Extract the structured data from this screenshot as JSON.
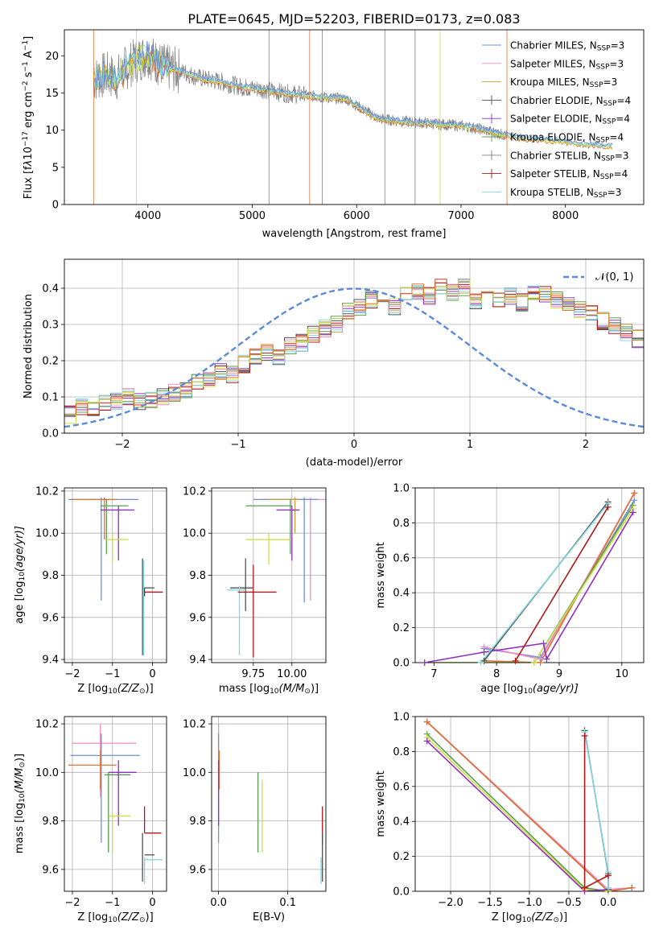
{
  "title": "PLATE=0645, MJD=52203, FIBERID=0173, z=0.083",
  "colors": {
    "Chabrier MILES": "#6f8fdc",
    "Salpeter MILES": "#f08cc0",
    "Kroupa MILES": "#c8a040",
    "Chabrier ELODIE": "#505050",
    "Salpeter ELODIE": "#9030c0",
    "Kroupa ELODIE": "#58a050",
    "Chabrier STELIB": "#808080",
    "Salpeter STELIB": "#b01818",
    "Kroupa STELIB": "#80d8e0",
    "extra_lime": "#d0e040",
    "extra_orange": "#e07030",
    "normal": "#5b8bd8"
  },
  "chart_data": [
    {
      "id": "spectrum",
      "type": "line",
      "xlabel": "wavelength [Angstrom, rest frame]",
      "ylabel_parts": [
        "Flux [f",
        "λ",
        "10",
        "−17",
        " erg cm",
        "−2",
        " s",
        "−1",
        " A",
        "−1",
        "]"
      ],
      "xlim": [
        3200,
        8750
      ],
      "ylim": [
        0,
        23.5
      ],
      "xticks": [
        4000,
        5000,
        6000,
        7000,
        8000
      ],
      "yticks": [
        0,
        5,
        10,
        15,
        20
      ],
      "legend_loc": "upper right",
      "legend": [
        {
          "imf": "Chabrier",
          "lib": "MILES",
          "n": "3",
          "color": "#6f8fdc",
          "marker": "line"
        },
        {
          "imf": "Salpeter",
          "lib": "MILES",
          "n": "3",
          "color": "#f08cc0",
          "marker": "line"
        },
        {
          "imf": "Kroupa",
          "lib": "MILES",
          "n": "3",
          "color": "#c8a040",
          "marker": "line"
        },
        {
          "imf": "Chabrier",
          "lib": "ELODIE",
          "n": "4",
          "color": "#505050",
          "marker": "cross"
        },
        {
          "imf": "Salpeter",
          "lib": "ELODIE",
          "n": "4",
          "color": "#9030c0",
          "marker": "cross"
        },
        {
          "imf": "Kroupa",
          "lib": "ELODIE",
          "n": "4",
          "color": "#58a050",
          "marker": "cross"
        },
        {
          "imf": "Chabrier",
          "lib": "STELIB",
          "n": "3",
          "color": "#808080",
          "marker": "cross"
        },
        {
          "imf": "Salpeter",
          "lib": "STELIB",
          "n": "4",
          "color": "#b01818",
          "marker": "cross"
        },
        {
          "imf": "Kroupa",
          "lib": "STELIB",
          "n": "3",
          "color": "#80d8e0",
          "marker": "line"
        }
      ],
      "continuum": {
        "x": [
          3480,
          3600,
          3700,
          3800,
          3900,
          4000,
          4100,
          4200,
          4300,
          4500,
          4700,
          4900,
          5100,
          5300,
          5500,
          5700,
          5900,
          6000,
          6200,
          6400,
          6600,
          6800,
          7000,
          7200,
          7400,
          7600,
          7800,
          8000,
          8200,
          8450
        ],
        "y": [
          16.8,
          17.5,
          17.0,
          18.5,
          19.5,
          20.2,
          19.0,
          18.3,
          18.0,
          17.0,
          16.5,
          15.8,
          15.5,
          15.0,
          14.7,
          14.4,
          14.2,
          13.3,
          11.6,
          11.2,
          11.0,
          10.8,
          10.6,
          10.1,
          9.4,
          8.9,
          8.7,
          8.4,
          8.1,
          7.8
        ]
      }
    },
    {
      "id": "residuals",
      "type": "histogram",
      "xlabel": "(data-model)/error",
      "ylabel": "Normed distribution",
      "xlim": [
        -2.5,
        2.5
      ],
      "ylim": [
        0,
        0.48
      ],
      "xticks": [
        -2,
        -1,
        0,
        1,
        2
      ],
      "yticks": [
        0.0,
        0.1,
        0.2,
        0.3,
        0.4
      ],
      "grid": true,
      "legend_loc": "upper right",
      "legend": "N(0,1)",
      "bin_width": 0.1,
      "bins_start": -2.5,
      "base_values": [
        0.05,
        0.07,
        0.07,
        0.08,
        0.09,
        0.1,
        0.09,
        0.09,
        0.1,
        0.11,
        0.12,
        0.14,
        0.15,
        0.17,
        0.16,
        0.19,
        0.21,
        0.22,
        0.21,
        0.24,
        0.25,
        0.27,
        0.29,
        0.3,
        0.34,
        0.35,
        0.37,
        0.37,
        0.35,
        0.38,
        0.39,
        0.38,
        0.4,
        0.39,
        0.4,
        0.36,
        0.38,
        0.37,
        0.38,
        0.36,
        0.39,
        0.38,
        0.37,
        0.36,
        0.34,
        0.33,
        0.31,
        0.3,
        0.28,
        0.26,
        0.28,
        0.27,
        0.24,
        0.22,
        0.2,
        0.18,
        0.17,
        0.15,
        0.14,
        0.13,
        0.12,
        0.11,
        0.1,
        0.09,
        0.08,
        0.08,
        0.07,
        0.06,
        0.05,
        0.05,
        0.04,
        0.04,
        0.04,
        0.03,
        0.03,
        0.03,
        0.04,
        0.03,
        0.03,
        0.02,
        0.03,
        0.02,
        0.02,
        0.03,
        0.02,
        0.02,
        0.02,
        0.01,
        0.01,
        0.01,
        0.02,
        0.01,
        0.01,
        0.01,
        0.01,
        0.01,
        0.01,
        0.01,
        0.01,
        0.01
      ]
    },
    {
      "id": "age-Z",
      "type": "errorbar",
      "xlabel_parts": [
        "Z [log",
        "10",
        "(Z/Z",
        "⊙",
        ")]"
      ],
      "ylabel_parts": [
        "age  [log",
        "10",
        "(age/yr)]"
      ],
      "xlim": [
        -2.2,
        0.35
      ],
      "ylim": [
        9.385,
        10.215
      ],
      "xticks": [
        -2,
        -1,
        0
      ],
      "yticks": [
        9.4,
        9.6,
        9.8,
        10.0,
        10.2
      ],
      "grid": true,
      "points": [
        {
          "x": -1.28,
          "y": 10.16,
          "xl": -2.1,
          "xh": -0.35,
          "yl": 9.68,
          "yh": 10.17,
          "c": "#6f8fdc"
        },
        {
          "x": -1.2,
          "y": 10.16,
          "xl": -2.0,
          "xh": -0.9,
          "yl": 9.97,
          "yh": 10.17,
          "c": "#e07030"
        },
        {
          "x": -1.15,
          "y": 10.13,
          "xl": -1.3,
          "xh": -0.6,
          "yl": 9.9,
          "yh": 10.16,
          "c": "#58a050"
        },
        {
          "x": -0.85,
          "y": 10.11,
          "xl": -1.3,
          "xh": -0.45,
          "yl": 9.87,
          "yh": 10.13,
          "c": "#9030c0"
        },
        {
          "x": -1.0,
          "y": 9.97,
          "xl": -1.15,
          "xh": -0.6,
          "yl": 9.86,
          "yh": 10.0,
          "c": "#d0e040"
        },
        {
          "x": -0.25,
          "y": 9.74,
          "xl": -0.25,
          "xh": 0.05,
          "yl": 9.42,
          "yh": 9.88,
          "c": "#505050"
        },
        {
          "x": -0.22,
          "y": 9.72,
          "xl": -0.22,
          "xh": 0.28,
          "yl": 9.42,
          "yh": 9.87,
          "c": "#80d8e0"
        },
        {
          "x": -0.2,
          "y": 9.72,
          "xl": -0.2,
          "xh": 0.25,
          "yl": 9.7,
          "yh": 9.74,
          "c": "#b01818"
        }
      ]
    },
    {
      "id": "age-mass",
      "type": "errorbar",
      "xlabel_parts": [
        "mass [log",
        "10",
        "(M/M",
        "⊙",
        ")]"
      ],
      "xlim": [
        9.48,
        10.22
      ],
      "ylim": [
        9.385,
        10.215
      ],
      "xticks": [
        9.75,
        10.0
      ],
      "xtick_labels": [
        "9.75",
        "10.00"
      ],
      "yticks": [
        9.4,
        9.6,
        9.8,
        10.0,
        10.2
      ],
      "grid": true,
      "points": [
        {
          "x": 10.12,
          "y": 10.16,
          "xl": 9.8,
          "xh": 10.22,
          "yl": 9.68,
          "yh": 10.17,
          "c": "#f08cc0"
        },
        {
          "x": 10.08,
          "y": 10.16,
          "xl": 9.75,
          "xh": 10.17,
          "yl": 9.67,
          "yh": 10.17,
          "c": "#6f8fdc"
        },
        {
          "x": 10.02,
          "y": 10.16,
          "xl": 9.85,
          "xh": 10.05,
          "yl": 10.0,
          "yh": 10.17,
          "c": "#c8a040"
        },
        {
          "x": 9.99,
          "y": 10.13,
          "xl": 9.7,
          "xh": 10.0,
          "yl": 9.9,
          "yh": 10.16,
          "c": "#58a050"
        },
        {
          "x": 10.0,
          "y": 10.11,
          "xl": 9.9,
          "xh": 10.05,
          "yl": 9.87,
          "yh": 10.13,
          "c": "#9030c0"
        },
        {
          "x": 9.85,
          "y": 9.97,
          "xl": 9.7,
          "xh": 9.99,
          "yl": 9.85,
          "yh": 10.0,
          "c": "#d0e040"
        },
        {
          "x": 9.7,
          "y": 9.74,
          "xl": 9.6,
          "xh": 9.75,
          "yl": 9.63,
          "yh": 9.88,
          "c": "#505050"
        },
        {
          "x": 9.66,
          "y": 9.73,
          "xl": 9.58,
          "xh": 9.7,
          "yl": 9.42,
          "yh": 9.75,
          "c": "#80d8e0"
        },
        {
          "x": 9.75,
          "y": 9.72,
          "xl": 9.65,
          "xh": 9.9,
          "yl": 9.41,
          "yh": 9.85,
          "c": "#b01818"
        }
      ]
    },
    {
      "id": "mass-weight-age",
      "type": "line",
      "xlabel_parts": [
        "age  [log",
        "10",
        "(age/yr)]"
      ],
      "ylabel": "mass weight",
      "xlim": [
        6.7,
        10.35
      ],
      "ylim": [
        0,
        1.0
      ],
      "xticks": [
        7,
        8,
        9,
        10
      ],
      "yticks": [
        0.0,
        0.2,
        0.4,
        0.6,
        0.8,
        1.0
      ],
      "grid": true,
      "series": [
        {
          "c": "#6f8fdc",
          "x": [
            7.8,
            8.7,
            10.2
          ],
          "y": [
            0.08,
            0.03,
            0.93
          ]
        },
        {
          "c": "#f08cc0",
          "x": [
            7.8,
            8.7,
            10.2
          ],
          "y": [
            0.09,
            0.02,
            0.97
          ]
        },
        {
          "c": "#e07030",
          "x": [
            7.8,
            8.7,
            10.2
          ],
          "y": [
            0.01,
            0.0,
            0.97
          ]
        },
        {
          "c": "#58a050",
          "x": [
            6.85,
            8.6,
            10.18
          ],
          "y": [
            0.0,
            0.0,
            0.9
          ]
        },
        {
          "c": "#d0e040",
          "x": [
            6.85,
            8.6,
            10.18
          ],
          "y": [
            0.0,
            0.0,
            0.88
          ]
        },
        {
          "c": "#9030c0",
          "x": [
            6.85,
            7.8,
            8.75,
            8.8,
            10.18
          ],
          "y": [
            0.0,
            0.06,
            0.11,
            0.02,
            0.86
          ]
        },
        {
          "c": "#505050",
          "x": [
            7.8,
            9.78
          ],
          "y": [
            0.01,
            0.92
          ]
        },
        {
          "c": "#80d8e0",
          "x": [
            7.75,
            9.78
          ],
          "y": [
            0.0,
            0.91
          ]
        },
        {
          "c": "#b01818",
          "x": [
            8.3,
            9.78
          ],
          "y": [
            0.01,
            0.89
          ]
        }
      ]
    },
    {
      "id": "mass-Z",
      "type": "errorbar",
      "xlabel_parts": [
        "Z [log",
        "10",
        "(Z/Z",
        "⊙",
        ")]"
      ],
      "ylabel_parts": [
        "mass [log",
        "10",
        "(M/M",
        "⊙",
        ")]"
      ],
      "xlim": [
        -2.2,
        0.35
      ],
      "ylim": [
        9.51,
        10.23
      ],
      "xticks": [
        -2,
        -1,
        0
      ],
      "yticks": [
        9.6,
        9.8,
        10.0,
        10.2
      ],
      "grid": true,
      "points": [
        {
          "x": -1.3,
          "y": 10.12,
          "xl": -2.0,
          "xh": -0.4,
          "yl": 9.9,
          "yh": 10.2,
          "c": "#f08cc0"
        },
        {
          "x": -1.28,
          "y": 10.07,
          "xl": -2.05,
          "xh": -0.32,
          "yl": 9.71,
          "yh": 10.16,
          "c": "#6f8fdc"
        },
        {
          "x": -1.3,
          "y": 10.03,
          "xl": -2.1,
          "xh": -0.9,
          "yl": 9.93,
          "yh": 10.09,
          "c": "#e07030"
        },
        {
          "x": -1.1,
          "y": 9.99,
          "xl": -1.2,
          "xh": -0.55,
          "yl": 9.67,
          "yh": 10.0,
          "c": "#58a050"
        },
        {
          "x": -0.85,
          "y": 10.0,
          "xl": -1.1,
          "xh": -0.4,
          "yl": 9.78,
          "yh": 10.05,
          "c": "#9030c0"
        },
        {
          "x": -1.0,
          "y": 9.82,
          "xl": -1.1,
          "xh": -0.55,
          "yl": 9.67,
          "yh": 9.83,
          "c": "#d0e040"
        },
        {
          "x": -0.2,
          "y": 9.75,
          "xl": -0.2,
          "xh": 0.22,
          "yl": 9.75,
          "yh": 9.86,
          "c": "#b01818"
        },
        {
          "x": -0.25,
          "y": 9.66,
          "xl": -0.2,
          "xh": 0.05,
          "yl": 9.55,
          "yh": 9.75,
          "c": "#505050"
        },
        {
          "x": -0.2,
          "y": 9.64,
          "xl": -0.2,
          "xh": 0.25,
          "yl": 9.54,
          "yh": 9.65,
          "c": "#80d8e0"
        }
      ]
    },
    {
      "id": "mass-EBV",
      "type": "errorbar",
      "xlabel": "E(B-V)",
      "xlim": [
        -0.01,
        0.155
      ],
      "ylim": [
        9.51,
        10.23
      ],
      "xticks": [
        0.0,
        0.1
      ],
      "xtick_labels": [
        "0.0",
        "0.1"
      ],
      "yticks": [
        9.6,
        9.8,
        10.0,
        10.2
      ],
      "grid": true,
      "points": [
        {
          "x": 0.0,
          "y": 10.12,
          "xl": 0.0,
          "xh": 0.0,
          "yl": 9.93,
          "yh": 10.2,
          "c": "#f08cc0"
        },
        {
          "x": 0.0,
          "y": 10.07,
          "xl": 0.0,
          "xh": 0.0,
          "yl": 9.71,
          "yh": 10.16,
          "c": "#6f8fdc"
        },
        {
          "x": 0.001,
          "y": 10.03,
          "xl": 0.001,
          "xh": 0.001,
          "yl": 9.93,
          "yh": 10.09,
          "c": "#e07030"
        },
        {
          "x": 0.0,
          "y": 10.0,
          "xl": 0.0,
          "xh": 0.0,
          "yl": 9.78,
          "yh": 10.05,
          "c": "#9030c0"
        },
        {
          "x": 0.057,
          "y": 9.99,
          "xl": 0.057,
          "xh": 0.057,
          "yl": 9.67,
          "yh": 10.0,
          "c": "#58a050"
        },
        {
          "x": 0.063,
          "y": 9.82,
          "xl": 0.063,
          "xh": 0.063,
          "yl": 9.67,
          "yh": 9.97,
          "c": "#d0e040"
        },
        {
          "x": 0.15,
          "y": 9.75,
          "xl": 0.15,
          "xh": 0.15,
          "yl": 9.7,
          "yh": 9.86,
          "c": "#b01818"
        },
        {
          "x": 0.15,
          "y": 9.66,
          "xl": 0.15,
          "xh": 0.15,
          "yl": 9.55,
          "yh": 9.75,
          "c": "#505050"
        },
        {
          "x": 0.148,
          "y": 9.64,
          "xl": 0.148,
          "xh": 0.148,
          "yl": 9.54,
          "yh": 9.65,
          "c": "#80d8e0"
        }
      ]
    },
    {
      "id": "mass-weight-Z",
      "type": "line",
      "xlabel_parts": [
        "Z [log",
        "10",
        "(Z/Z",
        "⊙",
        ")]"
      ],
      "ylabel": "mass weight",
      "xlim": [
        -2.45,
        0.45
      ],
      "ylim": [
        0,
        1.0
      ],
      "xticks": [
        -2.0,
        -1.5,
        -1.0,
        -0.5,
        0.0
      ],
      "xtick_labels": [
        "−2.0",
        "−1.5",
        "−1.0",
        "−0.5",
        "0.0"
      ],
      "yticks": [
        0.0,
        0.2,
        0.4,
        0.6,
        0.8,
        1.0
      ],
      "grid": true,
      "series": [
        {
          "c": "#6f8fdc",
          "x": [
            -2.3,
            0.0,
            0.3
          ],
          "y": [
            0.97,
            0.0,
            0.02
          ]
        },
        {
          "c": "#f08cc0",
          "x": [
            -2.3,
            0.0,
            0.3
          ],
          "y": [
            0.97,
            0.01,
            0.02
          ]
        },
        {
          "c": "#e07030",
          "x": [
            -2.3,
            0.0,
            0.3
          ],
          "y": [
            0.97,
            0.0,
            0.02
          ]
        },
        {
          "c": "#58a050",
          "x": [
            -2.3,
            -0.3,
            0.0
          ],
          "y": [
            0.9,
            0.02,
            0.0
          ]
        },
        {
          "c": "#d0e040",
          "x": [
            -2.3,
            -0.3,
            0.0
          ],
          "y": [
            0.88,
            0.01,
            0.0
          ]
        },
        {
          "c": "#9030c0",
          "x": [
            -2.3,
            -0.3,
            0.0
          ],
          "y": [
            0.86,
            0.0,
            0.01
          ]
        },
        {
          "c": "#505050",
          "x": [
            -0.3,
            0.0,
            0.0
          ],
          "y": [
            0.92,
            0.1,
            0.01
          ]
        },
        {
          "c": "#80d8e0",
          "x": [
            -0.3,
            0.0,
            0.0
          ],
          "y": [
            0.91,
            0.11,
            0.02
          ]
        },
        {
          "c": "#b01818",
          "x": [
            -0.3,
            -0.3,
            0.0
          ],
          "y": [
            0.89,
            0.02,
            0.09
          ]
        }
      ]
    }
  ]
}
